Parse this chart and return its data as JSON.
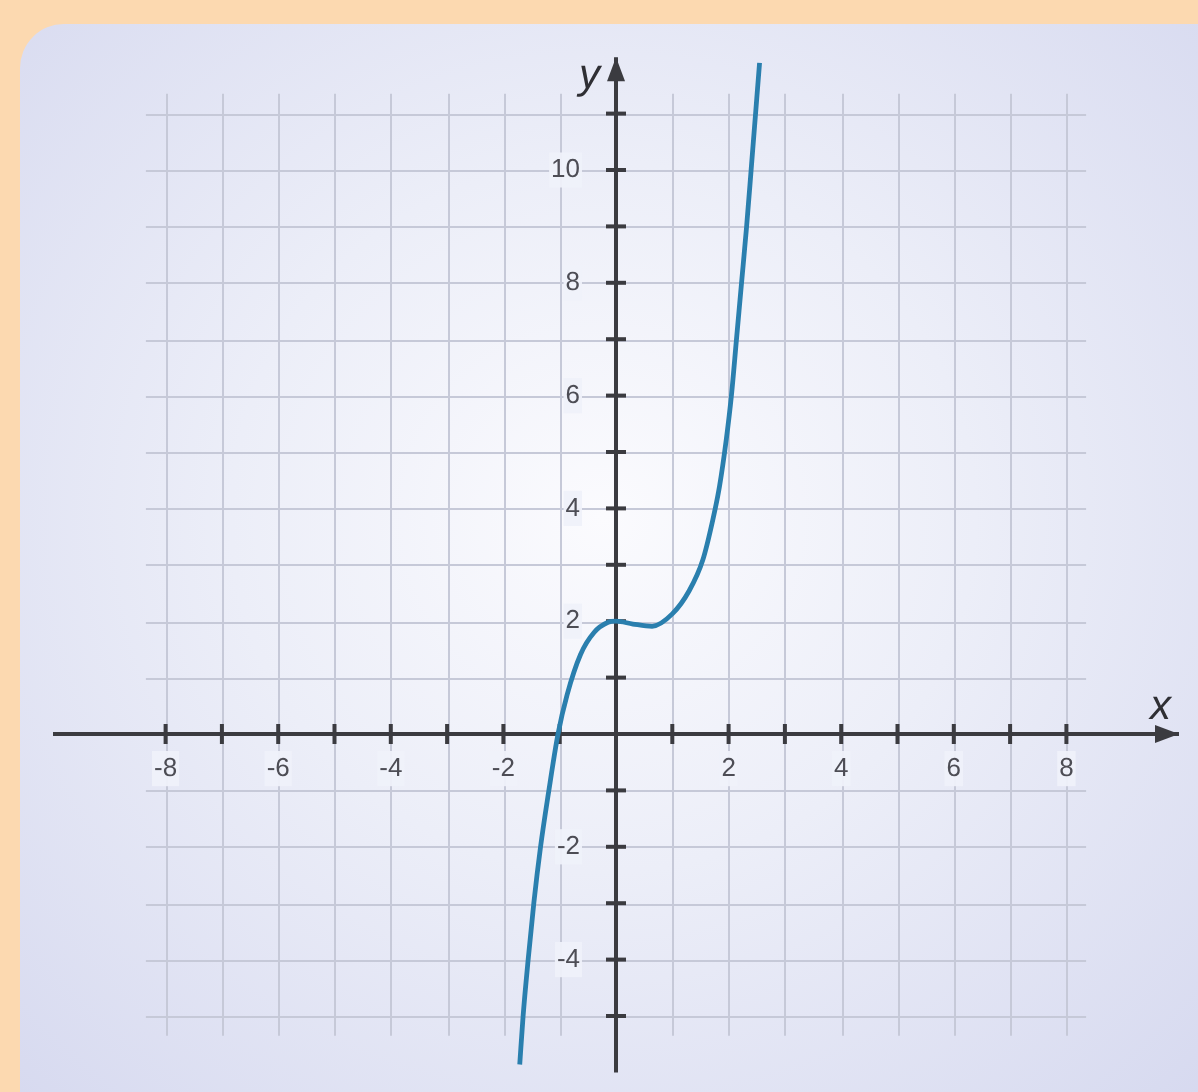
{
  "chart_data": {
    "type": "line",
    "xlabel": "x",
    "ylabel": "y",
    "xlim": [
      -10,
      10
    ],
    "ylim": [
      -6,
      12
    ],
    "xticks": [
      -8,
      {
        "value": -7,
        "label": null
      },
      -6,
      {
        "value": -5,
        "label": null
      },
      -4,
      {
        "value": -3,
        "label": null
      },
      -2,
      {
        "value": -1,
        "label": null
      },
      {
        "value": 1,
        "label": null
      },
      2,
      {
        "value": 3,
        "label": null
      },
      4,
      {
        "value": 5,
        "label": null
      },
      6,
      {
        "value": 7,
        "label": null
      },
      8
    ],
    "yticks": [
      {
        "value": -5,
        "label": null
      },
      -4,
      {
        "value": -3,
        "label": null
      },
      -2,
      {
        "value": -1,
        "label": null
      },
      {
        "value": 1,
        "label": null
      },
      2,
      {
        "value": 3,
        "label": null
      },
      4,
      {
        "value": 5,
        "label": null
      },
      6,
      {
        "value": 7,
        "label": null
      },
      8,
      {
        "value": 9,
        "label": null
      },
      10,
      {
        "value": 11,
        "label": null
      }
    ],
    "grid": true,
    "color": "#2a7fae",
    "x": [
      -1.71,
      -1.65,
      -1.56,
      -1.46,
      -1.34,
      -1.2,
      -1.03,
      -0.87,
      -0.63,
      -0.39,
      -0.14,
      0,
      0.3,
      0.64,
      1,
      1.3,
      1.54,
      1.72,
      1.84,
      1.96,
      2.05,
      2.14,
      2.23,
      2.32,
      2.4,
      2.55
    ],
    "values": [
      -5.86,
      -5,
      -4,
      -3,
      -2,
      -1.05,
      0,
      0.69,
      1.41,
      1.8,
      1.98,
      2,
      1.95,
      1.91,
      2.13,
      2.54,
      3.08,
      3.8,
      4.4,
      5.23,
      6,
      7,
      8,
      9,
      10,
      11.9
    ]
  }
}
